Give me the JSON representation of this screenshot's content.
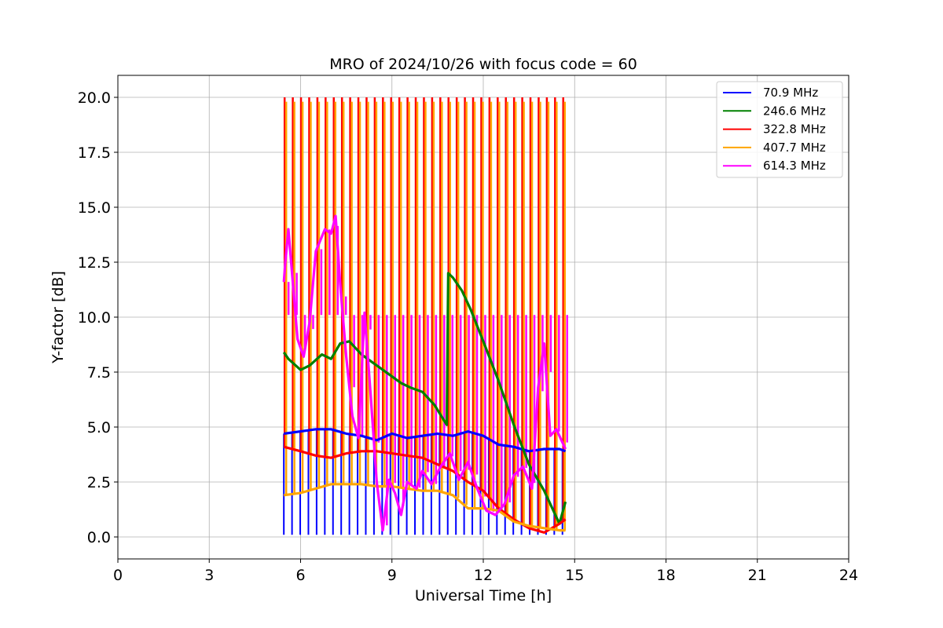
{
  "chart_data": {
    "type": "line",
    "title": "MRO of 2024/10/26 with focus code = 60",
    "xlabel": "Universal Time [h]",
    "ylabel": "Y-factor [dB]",
    "xlim": [
      0,
      24
    ],
    "ylim": [
      -1.0,
      21.0
    ],
    "xticks": [
      0,
      3,
      6,
      9,
      12,
      15,
      18,
      21,
      24
    ],
    "xtick_labels": [
      "0",
      "3",
      "6",
      "9",
      "12",
      "15",
      "18",
      "21",
      "24"
    ],
    "yticks": [
      0.0,
      2.5,
      5.0,
      7.5,
      10.0,
      12.5,
      15.0,
      17.5,
      20.0
    ],
    "ytick_labels": [
      "0.0",
      "2.5",
      "5.0",
      "7.5",
      "10.0",
      "12.5",
      "15.0",
      "17.5",
      "20.0"
    ],
    "grid": true,
    "legend_position": "top-right",
    "spikes": {
      "start": 5.45,
      "end": 14.6,
      "count": 35,
      "blue_low": 0.1,
      "orange_high": 19.8,
      "red_high": 20.0,
      "magenta_high": 10.1
    },
    "series": [
      {
        "name": " 70.9 MHz",
        "color": "#0000ff",
        "x": [
          5.45,
          6.0,
          6.5,
          7.0,
          7.5,
          8.0,
          8.5,
          9.0,
          9.5,
          10.0,
          10.5,
          11.0,
          11.5,
          12.0,
          12.5,
          13.0,
          13.5,
          14.0,
          14.5,
          14.7
        ],
        "y": [
          4.7,
          4.8,
          4.9,
          4.9,
          4.7,
          4.6,
          4.4,
          4.7,
          4.5,
          4.6,
          4.7,
          4.6,
          4.8,
          4.6,
          4.2,
          4.1,
          3.9,
          4.0,
          4.0,
          3.9
        ]
      },
      {
        "name": "246.6 MHz",
        "color": "#008000",
        "x": [
          5.45,
          5.6,
          6.0,
          6.3,
          6.7,
          7.0,
          7.3,
          7.6,
          8.0,
          8.5,
          9.0,
          9.3,
          9.6,
          10.0,
          10.4,
          10.8,
          10.85,
          11.0,
          11.3,
          11.6,
          12.0,
          12.5,
          13.0,
          13.5,
          14.0,
          14.5,
          14.7
        ],
        "y": [
          8.4,
          8.1,
          7.6,
          7.8,
          8.3,
          8.1,
          8.8,
          8.9,
          8.3,
          7.8,
          7.3,
          7.0,
          6.8,
          6.6,
          6.0,
          5.1,
          12.0,
          11.8,
          11.2,
          10.3,
          8.9,
          7.1,
          5.1,
          3.3,
          2.1,
          0.6,
          1.6
        ]
      },
      {
        "name": "322.8 MHz",
        "color": "#ff0000",
        "x": [
          5.45,
          6.0,
          6.5,
          7.0,
          7.5,
          8.0,
          8.5,
          9.0,
          9.5,
          10.0,
          10.5,
          11.0,
          11.5,
          12.0,
          12.5,
          13.0,
          13.5,
          14.0,
          14.5,
          14.7
        ],
        "y": [
          4.1,
          3.9,
          3.7,
          3.6,
          3.8,
          3.9,
          3.9,
          3.8,
          3.7,
          3.6,
          3.3,
          3.0,
          2.5,
          2.1,
          1.3,
          0.8,
          0.4,
          0.2,
          0.6,
          0.8
        ]
      },
      {
        "name": "407.7 MHz",
        "color": "#ffa500",
        "x": [
          5.45,
          6.0,
          6.5,
          7.0,
          7.5,
          8.0,
          8.5,
          9.0,
          9.5,
          10.0,
          10.5,
          11.0,
          11.5,
          12.0,
          12.5,
          13.0,
          13.5,
          14.0,
          14.5,
          14.7
        ],
        "y": [
          1.9,
          2.0,
          2.2,
          2.4,
          2.4,
          2.4,
          2.3,
          2.3,
          2.2,
          2.1,
          2.1,
          1.9,
          1.3,
          1.3,
          1.2,
          0.7,
          0.5,
          0.4,
          0.3,
          0.3
        ]
      },
      {
        "name": "614.3 MHz",
        "color": "#ff00ff",
        "x": [
          5.45,
          5.5,
          5.6,
          5.75,
          5.9,
          6.1,
          6.3,
          6.5,
          6.8,
          7.0,
          7.15,
          7.3,
          7.5,
          7.7,
          7.9,
          8.1,
          8.3,
          8.5,
          8.7,
          8.9,
          9.1,
          9.3,
          9.5,
          9.8,
          10.0,
          10.3,
          10.6,
          10.9,
          11.2,
          11.5,
          11.8,
          12.1,
          12.4,
          12.7,
          13.0,
          13.3,
          13.6,
          13.8,
          14.0,
          14.2,
          14.4,
          14.7
        ],
        "y": [
          11.6,
          12.5,
          14.0,
          11.5,
          9.0,
          8.2,
          9.8,
          13.0,
          14.0,
          13.8,
          14.6,
          11.5,
          8.2,
          5.5,
          4.5,
          10.2,
          6.5,
          2.5,
          0.3,
          2.6,
          2.0,
          1.0,
          2.5,
          2.2,
          3.0,
          2.4,
          3.2,
          3.8,
          2.6,
          3.4,
          2.2,
          1.2,
          1.0,
          1.5,
          2.8,
          3.2,
          2.2,
          6.8,
          8.8,
          4.6,
          4.9,
          4.0
        ]
      }
    ]
  }
}
